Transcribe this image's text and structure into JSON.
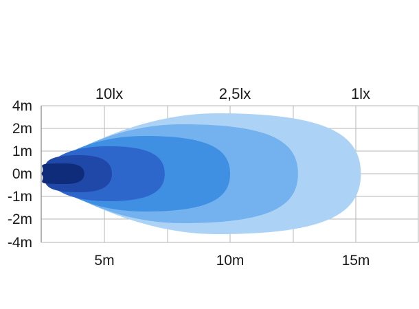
{
  "chart_data": {
    "type": "area",
    "title": "",
    "xlabel": "",
    "ylabel": "",
    "grid": true,
    "xlim": [
      0,
      18
    ],
    "y_tick_labels": [
      "4m",
      "2m",
      "1m",
      "0m",
      "-1m",
      "-2m",
      "-4m"
    ],
    "x_tick_labels": [
      "5m",
      "10m",
      "15m"
    ],
    "x_tick_values": [
      5,
      10,
      15
    ],
    "lux_labels": [
      {
        "text": "10lx",
        "x": 5
      },
      {
        "text": "2,5lx",
        "x": 10
      },
      {
        "text": "1lx",
        "x": 15
      }
    ],
    "series": [
      {
        "reach_m": 15.2,
        "half_width_label": "3m",
        "color": "#acd3f6"
      },
      {
        "reach_m": 12.7,
        "half_width_label": "2.5m",
        "color": "#73b2ee"
      },
      {
        "reach_m": 10.0,
        "half_width_label": "2m",
        "color": "#3f8fe2"
      },
      {
        "reach_m": 7.4,
        "half_width_label": "1.5m",
        "color": "#2e67cb"
      },
      {
        "reach_m": 5.3,
        "half_width_label": "1m",
        "color": "#2048a8"
      },
      {
        "reach_m": 4.2,
        "half_width_label": "0.5m",
        "color": "#0f2c7a"
      }
    ]
  }
}
